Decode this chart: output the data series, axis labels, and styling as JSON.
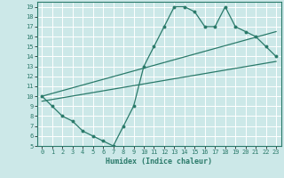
{
  "bg_color": "#cce8e8",
  "grid_color": "#ffffff",
  "line_color": "#2a7a6a",
  "xlabel": "Humidex (Indice chaleur)",
  "xlim": [
    -0.5,
    23.5
  ],
  "ylim": [
    5,
    19.5
  ],
  "xticks": [
    0,
    1,
    2,
    3,
    4,
    5,
    6,
    7,
    8,
    9,
    10,
    11,
    12,
    13,
    14,
    15,
    16,
    17,
    18,
    19,
    20,
    21,
    22,
    23
  ],
  "yticks": [
    5,
    6,
    7,
    8,
    9,
    10,
    11,
    12,
    13,
    14,
    15,
    16,
    17,
    18,
    19
  ],
  "curve1_x": [
    0,
    1,
    2,
    3,
    4,
    5,
    6,
    7,
    8,
    9,
    10,
    11,
    12,
    13,
    14,
    15,
    16,
    17,
    18,
    19,
    20,
    21,
    22,
    23
  ],
  "curve1_y": [
    10,
    9,
    8,
    7.5,
    6.5,
    6,
    5.5,
    5,
    7,
    9,
    13,
    15,
    17,
    19,
    19,
    18.5,
    17,
    17,
    19,
    17,
    16.5,
    16,
    15,
    14
  ],
  "line2_x": [
    0,
    23
  ],
  "line2_y": [
    10.0,
    16.5
  ],
  "line3_x": [
    0,
    23
  ],
  "line3_y": [
    9.5,
    13.5
  ]
}
